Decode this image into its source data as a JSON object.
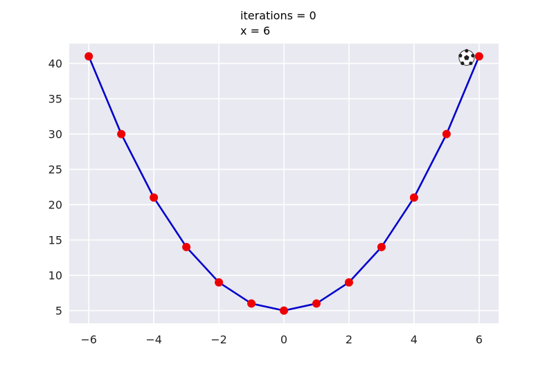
{
  "title": {
    "line1": "iterations = 0",
    "line2": "x = 6"
  },
  "chart_data": {
    "type": "line",
    "x": [
      -6,
      -5,
      -4,
      -3,
      -2,
      -1,
      0,
      1,
      2,
      3,
      4,
      5,
      6
    ],
    "series": [
      {
        "values": [
          41,
          30,
          21,
          14,
          9,
          6,
          5,
          6,
          9,
          14,
          21,
          30,
          41
        ],
        "color": "#0000cc",
        "marker_color": "#ee0000"
      }
    ],
    "marker": {
      "icon": "soccer-ball-icon",
      "x": 6,
      "y": 41
    },
    "xlim": [
      -6.6,
      6.6
    ],
    "ylim": [
      3.2,
      42.8
    ],
    "x_ticks": [
      -6,
      -4,
      -2,
      0,
      2,
      4,
      6
    ],
    "x_tick_labels": [
      "−6",
      "−4",
      "−2",
      "0",
      "2",
      "4",
      "6"
    ],
    "y_ticks": [
      5,
      10,
      15,
      20,
      25,
      30,
      35,
      40
    ],
    "y_tick_labels": [
      "5",
      "10",
      "15",
      "20",
      "25",
      "30",
      "35",
      "40"
    ],
    "grid": true,
    "background": "#e9e9f1"
  }
}
